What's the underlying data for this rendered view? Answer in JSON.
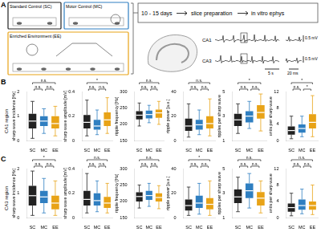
{
  "panel_a": {
    "label": "A",
    "groups": [
      {
        "name": "Standard Control (SC)",
        "color": "#222222"
      },
      {
        "name": "Motor Control (MC)",
        "color": "#2f7fc1"
      },
      {
        "name": "Enriched Environment (EE)",
        "color": "#e8a317"
      }
    ],
    "steps": [
      "10 - 15 days",
      "slice preparation",
      "in vitro ephys"
    ],
    "traces": [
      {
        "name": "CA1",
        "scale": "0.5 mV"
      },
      {
        "name": "CA3",
        "scale": "0.5 mV"
      }
    ],
    "time_scales": [
      "5 s",
      "20 ms"
    ]
  },
  "panels": [
    {
      "label": "B",
      "title": "CA1 region"
    },
    {
      "label": "C",
      "title": "CA3 region"
    }
  ],
  "chart_data": [
    {
      "type": "box",
      "panel": "B",
      "y_label": "sharp wave incidence [Hz]",
      "categories": [
        "SC",
        "MC",
        "EE"
      ],
      "colors": [
        "#222222",
        "#2f7fc1",
        "#e8a317"
      ],
      "q1": [
        0.5,
        0.6,
        0.5
      ],
      "median": [
        0.8,
        0.8,
        0.7
      ],
      "q3": [
        1.1,
        1.0,
        1.0
      ],
      "whiskers": [
        [
          0.1,
          1.6
        ],
        [
          0.3,
          1.3
        ],
        [
          0.2,
          1.4
        ]
      ],
      "ylim": [
        0,
        2
      ],
      "yticks": [
        0,
        1,
        2
      ],
      "grid": false,
      "significance": [
        {
          "pair": [
            "SC",
            "MC"
          ],
          "label": "n.s."
        },
        {
          "pair": [
            "MC",
            "EE"
          ],
          "label": "n.s."
        },
        {
          "pair": [
            "SC",
            "EE"
          ],
          "label": "n.s."
        }
      ]
    },
    {
      "type": "box",
      "panel": "B",
      "y_label": "sharp wave amplitude [mV]",
      "categories": [
        "SC",
        "MC",
        "EE"
      ],
      "colors": [
        "#222222",
        "#2f7fc1",
        "#e8a317"
      ],
      "q1": [
        0.1,
        0.09,
        0.12
      ],
      "median": [
        0.15,
        0.12,
        0.17
      ],
      "q3": [
        0.21,
        0.17,
        0.23
      ],
      "whiskers": [
        [
          0.04,
          0.33
        ],
        [
          0.05,
          0.25
        ],
        [
          0.06,
          0.35
        ]
      ],
      "ylim": [
        0,
        0.4
      ],
      "yticks": [
        0,
        0.2,
        0.4
      ],
      "grid": false,
      "significance": [
        {
          "pair": [
            "SC",
            "MC"
          ],
          "label": "n.s."
        },
        {
          "pair": [
            "MC",
            "EE"
          ],
          "label": "n.s."
        },
        {
          "pair": [
            "SC",
            "EE"
          ],
          "label": "*"
        }
      ]
    },
    {
      "type": "box",
      "panel": "B",
      "y_label": "ripple frequency [Hz]",
      "categories": [
        "SC",
        "MC",
        "EE"
      ],
      "colors": [
        "#222222",
        "#2f7fc1",
        "#e8a317"
      ],
      "q1": [
        215,
        218,
        220
      ],
      "median": [
        228,
        230,
        235
      ],
      "q3": [
        240,
        242,
        245
      ],
      "whiskers": [
        [
          195,
          265
        ],
        [
          205,
          258
        ],
        [
          200,
          270
        ]
      ],
      "ylim": [
        150,
        300
      ],
      "yticks": [
        150,
        200,
        250,
        300
      ],
      "grid": false,
      "significance": [
        {
          "pair": [
            "SC",
            "MC"
          ],
          "label": "n.s."
        },
        {
          "pair": [
            "MC",
            "EE"
          ],
          "label": "n.s."
        },
        {
          "pair": [
            "SC",
            "EE"
          ],
          "label": "n.s."
        }
      ]
    },
    {
      "type": "box",
      "panel": "B",
      "y_label": "ripple power [a.u.]",
      "categories": [
        "SC",
        "MC",
        "EE"
      ],
      "colors": [
        "#222222",
        "#2f7fc1",
        "#e8a317"
      ],
      "q1": [
        8,
        9,
        10
      ],
      "median": [
        12,
        13,
        14
      ],
      "q3": [
        18,
        17,
        20
      ],
      "whiskers": [
        [
          3,
          30
        ],
        [
          5,
          25
        ],
        [
          4,
          34
        ]
      ],
      "ylim": [
        0,
        40
      ],
      "yticks": [
        0,
        20,
        40
      ],
      "grid": false,
      "significance": [
        {
          "pair": [
            "SC",
            "MC"
          ],
          "label": "n.s."
        },
        {
          "pair": [
            "MC",
            "EE"
          ],
          "label": "n.s."
        },
        {
          "pair": [
            "SC",
            "EE"
          ],
          "label": "n.s."
        }
      ]
    },
    {
      "type": "box",
      "panel": "B",
      "y_label": "ripples per sharp wave",
      "categories": [
        "SC",
        "MC",
        "EE"
      ],
      "colors": [
        "#222222",
        "#2f7fc1",
        "#e8a317"
      ],
      "q1": [
        2.2,
        2.5,
        2.8
      ],
      "median": [
        2.7,
        3,
        3.3
      ],
      "q3": [
        3.2,
        3.4,
        3.9
      ],
      "whiskers": [
        [
          1.6,
          4
        ],
        [
          2,
          4.2
        ],
        [
          1.8,
          4.8
        ]
      ],
      "ylim": [
        1,
        5
      ],
      "yticks": [
        1,
        3,
        5
      ],
      "grid": false,
      "significance": [
        {
          "pair": [
            "SC",
            "MC"
          ],
          "label": "n.s."
        },
        {
          "pair": [
            "MC",
            "EE"
          ],
          "label": "n.s."
        },
        {
          "pair": [
            "SC",
            "EE"
          ],
          "label": "*"
        }
      ]
    },
    {
      "type": "box",
      "panel": "B",
      "y_label": "units per sharp wave",
      "categories": [
        "SC",
        "MC",
        "EE"
      ],
      "colors": [
        "#222222",
        "#2f7fc1",
        "#e8a317"
      ],
      "q1": [
        1.5,
        2,
        3
      ],
      "median": [
        2.5,
        3,
        4.5
      ],
      "q3": [
        3.5,
        4,
        6.5
      ],
      "whiskers": [
        [
          0.5,
          6
        ],
        [
          1,
          6
        ],
        [
          1,
          11
        ]
      ],
      "ylim": [
        0,
        12
      ],
      "yticks": [
        0,
        4,
        8,
        12
      ],
      "grid": false,
      "significance": [
        {
          "pair": [
            "SC",
            "MC"
          ],
          "label": "n.s."
        },
        {
          "pair": [
            "MC",
            "EE"
          ],
          "label": "*"
        },
        {
          "pair": [
            "SC",
            "EE"
          ],
          "label": "*"
        }
      ]
    },
    {
      "type": "box",
      "panel": "C",
      "y_label": "sharp wave incidence [Hz]",
      "categories": [
        "SC",
        "MC",
        "EE"
      ],
      "colors": [
        "#222222",
        "#2f7fc1",
        "#e8a317"
      ],
      "q1": [
        0.5,
        0.6,
        0.35
      ],
      "median": [
        0.9,
        0.85,
        0.6
      ],
      "q3": [
        1.3,
        1.1,
        0.9
      ],
      "whiskers": [
        [
          0.1,
          1.9
        ],
        [
          0.2,
          1.6
        ],
        [
          0.1,
          1.5
        ]
      ],
      "ylim": [
        0,
        2
      ],
      "yticks": [
        0,
        1,
        2
      ],
      "grid": false,
      "significance": [
        {
          "pair": [
            "SC",
            "MC"
          ],
          "label": "n.s."
        },
        {
          "pair": [
            "MC",
            "EE"
          ],
          "label": "n.s."
        },
        {
          "pair": [
            "SC",
            "EE"
          ],
          "label": "*"
        }
      ]
    },
    {
      "type": "box",
      "panel": "C",
      "y_label": "sharp wave amplitude [mV]",
      "categories": [
        "SC",
        "MC",
        "EE"
      ],
      "colors": [
        "#222222",
        "#2f7fc1",
        "#e8a317"
      ],
      "q1": [
        0.1,
        0.1,
        0.08
      ],
      "median": [
        0.15,
        0.14,
        0.12
      ],
      "q3": [
        0.22,
        0.2,
        0.17
      ],
      "whiskers": [
        [
          0.04,
          0.36
        ],
        [
          0.05,
          0.3
        ],
        [
          0.04,
          0.28
        ]
      ],
      "ylim": [
        0,
        0.4
      ],
      "yticks": [
        0,
        0.2,
        0.4
      ],
      "grid": false,
      "significance": [
        {
          "pair": [
            "SC",
            "MC"
          ],
          "label": "n.s."
        },
        {
          "pair": [
            "MC",
            "EE"
          ],
          "label": "n.s."
        },
        {
          "pair": [
            "SC",
            "EE"
          ],
          "label": "n.s."
        }
      ]
    },
    {
      "type": "box",
      "panel": "C",
      "y_label": "ripple frequency [Hz]",
      "categories": [
        "SC",
        "MC",
        "EE"
      ],
      "colors": [
        "#222222",
        "#2f7fc1",
        "#e8a317"
      ],
      "q1": [
        200,
        205,
        200
      ],
      "median": [
        215,
        218,
        212
      ],
      "q3": [
        228,
        232,
        225
      ],
      "whiskers": [
        [
          180,
          250
        ],
        [
          185,
          255
        ],
        [
          178,
          248
        ]
      ],
      "ylim": [
        150,
        300
      ],
      "yticks": [
        150,
        200,
        250,
        300
      ],
      "grid": false,
      "significance": [
        {
          "pair": [
            "SC",
            "MC"
          ],
          "label": "n.s."
        },
        {
          "pair": [
            "MC",
            "EE"
          ],
          "label": "n.s."
        },
        {
          "pair": [
            "SC",
            "EE"
          ],
          "label": "n.s."
        }
      ]
    },
    {
      "type": "box",
      "panel": "C",
      "y_label": "ripple power [a.u.]",
      "categories": [
        "SC",
        "MC",
        "EE"
      ],
      "colors": [
        "#222222",
        "#2f7fc1",
        "#e8a317"
      ],
      "q1": [
        6,
        8,
        7
      ],
      "median": [
        10,
        12,
        11
      ],
      "q3": [
        15,
        18,
        16
      ],
      "whiskers": [
        [
          2,
          25
        ],
        [
          3,
          28
        ],
        [
          2,
          30
        ]
      ],
      "ylim": [
        0,
        40
      ],
      "yticks": [
        0,
        20,
        40
      ],
      "grid": false,
      "significance": [
        {
          "pair": [
            "SC",
            "MC"
          ],
          "label": "n.s."
        },
        {
          "pair": [
            "MC",
            "EE"
          ],
          "label": "n.s."
        },
        {
          "pair": [
            "SC",
            "EE"
          ],
          "label": "*"
        }
      ]
    },
    {
      "type": "box",
      "panel": "C",
      "y_label": "ripples per sharp wave",
      "categories": [
        "SC",
        "MC",
        "EE"
      ],
      "colors": [
        "#222222",
        "#2f7fc1",
        "#e8a317"
      ],
      "q1": [
        2.2,
        2.6,
        2
      ],
      "median": [
        2.7,
        3.2,
        2.6
      ],
      "q3": [
        3.3,
        3.8,
        3.1
      ],
      "whiskers": [
        [
          1.5,
          4.3
        ],
        [
          1.8,
          4.6
        ],
        [
          1.4,
          4
        ]
      ],
      "ylim": [
        1,
        5
      ],
      "yticks": [
        1,
        3,
        5
      ],
      "grid": false,
      "significance": [
        {
          "pair": [
            "SC",
            "MC"
          ],
          "label": "n.s."
        },
        {
          "pair": [
            "MC",
            "EE"
          ],
          "label": "n.s."
        },
        {
          "pair": [
            "SC",
            "EE"
          ],
          "label": "n.s."
        }
      ]
    },
    {
      "type": "box",
      "panel": "C",
      "y_label": "units per sharp wave",
      "categories": [
        "SC",
        "MC",
        "EE"
      ],
      "colors": [
        "#222222",
        "#2f7fc1",
        "#e8a317"
      ],
      "q1": [
        1.5,
        2,
        2
      ],
      "median": [
        2.5,
        3,
        3
      ],
      "q3": [
        3.5,
        4.5,
        4
      ],
      "whiskers": [
        [
          0.5,
          6
        ],
        [
          1,
          7
        ],
        [
          0.8,
          8
        ]
      ],
      "ylim": [
        0,
        12
      ],
      "yticks": [
        0,
        4,
        8,
        12
      ],
      "grid": false,
      "significance": [
        {
          "pair": [
            "SC",
            "MC"
          ],
          "label": "n.s."
        },
        {
          "pair": [
            "MC",
            "EE"
          ],
          "label": "n.s."
        },
        {
          "pair": [
            "SC",
            "EE"
          ],
          "label": "n.s."
        }
      ]
    }
  ]
}
